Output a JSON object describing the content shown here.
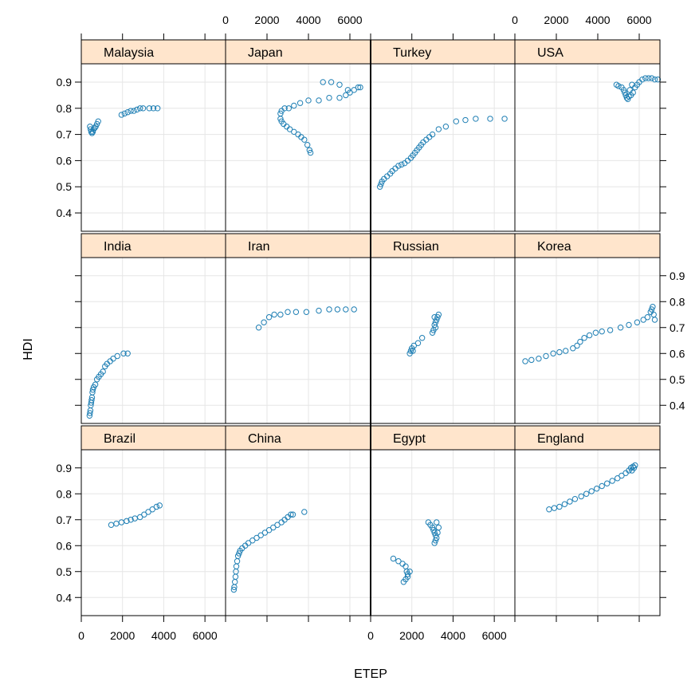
{
  "chart_data": {
    "type": "scatter",
    "title": "",
    "xlabel": "ETEP",
    "ylabel": "HDI",
    "xlim": [
      0,
      7000
    ],
    "ylim": [
      0.33,
      0.97
    ],
    "x_ticks": [
      "0",
      "2000",
      "4000",
      "6000"
    ],
    "y_ticks": [
      "0.4",
      "0.5",
      "0.6",
      "0.7",
      "0.8",
      "0.9"
    ],
    "grid": true,
    "colors": {
      "point": "#1f7fb4",
      "strip": "#ffe5cc",
      "grid": "#e6e6e6",
      "frame": "#000000"
    },
    "panels": [
      {
        "name": "Malaysia",
        "points": [
          [
            420,
            0.73
          ],
          [
            450,
            0.72
          ],
          [
            480,
            0.71
          ],
          [
            520,
            0.705
          ],
          [
            560,
            0.71
          ],
          [
            600,
            0.72
          ],
          [
            650,
            0.725
          ],
          [
            700,
            0.73
          ],
          [
            760,
            0.74
          ],
          [
            820,
            0.75
          ],
          [
            1950,
            0.775
          ],
          [
            2100,
            0.78
          ],
          [
            2250,
            0.785
          ],
          [
            2400,
            0.79
          ],
          [
            2550,
            0.79
          ],
          [
            2700,
            0.795
          ],
          [
            2850,
            0.8
          ],
          [
            3000,
            0.8
          ],
          [
            3300,
            0.8
          ],
          [
            3500,
            0.8
          ],
          [
            3700,
            0.8
          ]
        ]
      },
      {
        "name": "Japan",
        "points": [
          [
            2650,
            0.78
          ],
          [
            2650,
            0.76
          ],
          [
            2700,
            0.75
          ],
          [
            2800,
            0.74
          ],
          [
            2950,
            0.73
          ],
          [
            3100,
            0.72
          ],
          [
            3300,
            0.71
          ],
          [
            3500,
            0.7
          ],
          [
            3650,
            0.69
          ],
          [
            3800,
            0.68
          ],
          [
            3950,
            0.66
          ],
          [
            4050,
            0.64
          ],
          [
            4100,
            0.63
          ],
          [
            2700,
            0.79
          ],
          [
            2850,
            0.8
          ],
          [
            3050,
            0.8
          ],
          [
            3300,
            0.81
          ],
          [
            3600,
            0.82
          ],
          [
            4000,
            0.83
          ],
          [
            4500,
            0.83
          ],
          [
            5000,
            0.84
          ],
          [
            5500,
            0.84
          ],
          [
            5800,
            0.85
          ],
          [
            6000,
            0.86
          ],
          [
            6200,
            0.87
          ],
          [
            6400,
            0.88
          ],
          [
            6500,
            0.88
          ],
          [
            4700,
            0.9
          ],
          [
            5100,
            0.9
          ],
          [
            5500,
            0.89
          ],
          [
            5900,
            0.87
          ]
        ]
      },
      {
        "name": "Turkey",
        "points": [
          [
            450,
            0.5
          ],
          [
            500,
            0.51
          ],
          [
            550,
            0.52
          ],
          [
            650,
            0.53
          ],
          [
            800,
            0.54
          ],
          [
            950,
            0.55
          ],
          [
            1050,
            0.56
          ],
          [
            1200,
            0.57
          ],
          [
            1350,
            0.58
          ],
          [
            1500,
            0.585
          ],
          [
            1650,
            0.59
          ],
          [
            1800,
            0.6
          ],
          [
            1950,
            0.61
          ],
          [
            2050,
            0.62
          ],
          [
            2150,
            0.63
          ],
          [
            2250,
            0.64
          ],
          [
            2350,
            0.65
          ],
          [
            2450,
            0.66
          ],
          [
            2550,
            0.67
          ],
          [
            2700,
            0.68
          ],
          [
            2850,
            0.69
          ],
          [
            3000,
            0.7
          ],
          [
            3300,
            0.72
          ],
          [
            3650,
            0.73
          ],
          [
            4150,
            0.75
          ],
          [
            4600,
            0.755
          ],
          [
            5100,
            0.76
          ],
          [
            5800,
            0.76
          ],
          [
            6500,
            0.76
          ]
        ]
      },
      {
        "name": "USA",
        "points": [
          [
            4900,
            0.89
          ],
          [
            5000,
            0.885
          ],
          [
            5150,
            0.88
          ],
          [
            5250,
            0.87
          ],
          [
            5300,
            0.86
          ],
          [
            5350,
            0.85
          ],
          [
            5400,
            0.84
          ],
          [
            5450,
            0.835
          ],
          [
            5500,
            0.845
          ],
          [
            5600,
            0.85
          ],
          [
            5700,
            0.86
          ],
          [
            5800,
            0.88
          ],
          [
            5900,
            0.89
          ],
          [
            6000,
            0.9
          ],
          [
            6150,
            0.91
          ],
          [
            6300,
            0.915
          ],
          [
            6450,
            0.915
          ],
          [
            6600,
            0.915
          ],
          [
            6750,
            0.91
          ],
          [
            6900,
            0.91
          ],
          [
            5550,
            0.87
          ],
          [
            5650,
            0.89
          ]
        ]
      },
      {
        "name": "India",
        "points": [
          [
            400,
            0.36
          ],
          [
            420,
            0.37
          ],
          [
            440,
            0.38
          ],
          [
            460,
            0.4
          ],
          [
            480,
            0.41
          ],
          [
            500,
            0.42
          ],
          [
            520,
            0.43
          ],
          [
            540,
            0.45
          ],
          [
            560,
            0.46
          ],
          [
            600,
            0.47
          ],
          [
            680,
            0.48
          ],
          [
            760,
            0.5
          ],
          [
            850,
            0.51
          ],
          [
            950,
            0.52
          ],
          [
            1050,
            0.53
          ],
          [
            1150,
            0.55
          ],
          [
            1250,
            0.56
          ],
          [
            1400,
            0.57
          ],
          [
            1550,
            0.58
          ],
          [
            1750,
            0.59
          ],
          [
            2050,
            0.6
          ],
          [
            2250,
            0.6
          ]
        ]
      },
      {
        "name": "Iran",
        "points": [
          [
            1600,
            0.7
          ],
          [
            1850,
            0.72
          ],
          [
            2100,
            0.74
          ],
          [
            2350,
            0.75
          ],
          [
            2650,
            0.75
          ],
          [
            3000,
            0.76
          ],
          [
            3400,
            0.76
          ],
          [
            3900,
            0.76
          ],
          [
            4500,
            0.765
          ],
          [
            5000,
            0.77
          ],
          [
            5400,
            0.77
          ],
          [
            5800,
            0.77
          ],
          [
            6200,
            0.77
          ]
        ]
      },
      {
        "name": "Russian",
        "points": [
          [
            1900,
            0.6
          ],
          [
            1950,
            0.61
          ],
          [
            2000,
            0.62
          ],
          [
            2050,
            0.61
          ],
          [
            2100,
            0.63
          ],
          [
            2300,
            0.64
          ],
          [
            2500,
            0.66
          ],
          [
            3000,
            0.68
          ],
          [
            3050,
            0.69
          ],
          [
            3100,
            0.71
          ],
          [
            3150,
            0.72
          ],
          [
            3200,
            0.73
          ],
          [
            3250,
            0.74
          ],
          [
            3300,
            0.75
          ],
          [
            3100,
            0.74
          ],
          [
            3150,
            0.7
          ]
        ]
      },
      {
        "name": "Korea",
        "points": [
          [
            500,
            0.57
          ],
          [
            800,
            0.575
          ],
          [
            1150,
            0.58
          ],
          [
            1500,
            0.59
          ],
          [
            1850,
            0.6
          ],
          [
            2150,
            0.605
          ],
          [
            2450,
            0.61
          ],
          [
            2800,
            0.62
          ],
          [
            3000,
            0.63
          ],
          [
            3150,
            0.645
          ],
          [
            3350,
            0.66
          ],
          [
            3600,
            0.67
          ],
          [
            3900,
            0.68
          ],
          [
            4200,
            0.685
          ],
          [
            4600,
            0.69
          ],
          [
            5100,
            0.7
          ],
          [
            5500,
            0.71
          ],
          [
            5900,
            0.72
          ],
          [
            6200,
            0.73
          ],
          [
            6400,
            0.74
          ],
          [
            6550,
            0.76
          ],
          [
            6600,
            0.77
          ],
          [
            6650,
            0.78
          ],
          [
            6700,
            0.75
          ],
          [
            6750,
            0.73
          ]
        ]
      },
      {
        "name": "Brazil",
        "points": [
          [
            1450,
            0.68
          ],
          [
            1700,
            0.685
          ],
          [
            1950,
            0.69
          ],
          [
            2200,
            0.695
          ],
          [
            2400,
            0.7
          ],
          [
            2600,
            0.705
          ],
          [
            2850,
            0.71
          ],
          [
            3050,
            0.72
          ],
          [
            3250,
            0.73
          ],
          [
            3450,
            0.74
          ],
          [
            3650,
            0.75
          ],
          [
            3800,
            0.755
          ]
        ]
      },
      {
        "name": "China",
        "points": [
          [
            400,
            0.43
          ],
          [
            420,
            0.44
          ],
          [
            450,
            0.46
          ],
          [
            480,
            0.48
          ],
          [
            500,
            0.5
          ],
          [
            520,
            0.52
          ],
          [
            560,
            0.54
          ],
          [
            600,
            0.56
          ],
          [
            650,
            0.57
          ],
          [
            700,
            0.58
          ],
          [
            800,
            0.59
          ],
          [
            950,
            0.6
          ],
          [
            1100,
            0.61
          ],
          [
            1300,
            0.62
          ],
          [
            1500,
            0.63
          ],
          [
            1700,
            0.64
          ],
          [
            1900,
            0.65
          ],
          [
            2100,
            0.66
          ],
          [
            2300,
            0.67
          ],
          [
            2500,
            0.68
          ],
          [
            2700,
            0.69
          ],
          [
            2850,
            0.7
          ],
          [
            3000,
            0.71
          ],
          [
            3150,
            0.72
          ],
          [
            3250,
            0.72
          ],
          [
            3800,
            0.73
          ]
        ]
      },
      {
        "name": "Egypt",
        "points": [
          [
            1100,
            0.55
          ],
          [
            1350,
            0.54
          ],
          [
            1550,
            0.53
          ],
          [
            1700,
            0.52
          ],
          [
            1750,
            0.5
          ],
          [
            1800,
            0.49
          ],
          [
            1700,
            0.47
          ],
          [
            1600,
            0.46
          ],
          [
            1800,
            0.48
          ],
          [
            1900,
            0.5
          ],
          [
            2800,
            0.69
          ],
          [
            2900,
            0.68
          ],
          [
            3000,
            0.67
          ],
          [
            3050,
            0.66
          ],
          [
            3100,
            0.65
          ],
          [
            3150,
            0.64
          ],
          [
            3200,
            0.63
          ],
          [
            3150,
            0.62
          ],
          [
            3100,
            0.61
          ],
          [
            3250,
            0.65
          ],
          [
            3300,
            0.67
          ],
          [
            3200,
            0.69
          ]
        ]
      },
      {
        "name": "England",
        "points": [
          [
            1650,
            0.74
          ],
          [
            1900,
            0.745
          ],
          [
            2150,
            0.75
          ],
          [
            2400,
            0.76
          ],
          [
            2650,
            0.77
          ],
          [
            2900,
            0.78
          ],
          [
            3200,
            0.79
          ],
          [
            3450,
            0.8
          ],
          [
            3700,
            0.81
          ],
          [
            3950,
            0.82
          ],
          [
            4200,
            0.83
          ],
          [
            4450,
            0.84
          ],
          [
            4700,
            0.85
          ],
          [
            4950,
            0.86
          ],
          [
            5150,
            0.87
          ],
          [
            5350,
            0.88
          ],
          [
            5500,
            0.89
          ],
          [
            5600,
            0.9
          ],
          [
            5700,
            0.905
          ],
          [
            5800,
            0.91
          ],
          [
            5750,
            0.9
          ],
          [
            5650,
            0.89
          ]
        ]
      }
    ]
  }
}
